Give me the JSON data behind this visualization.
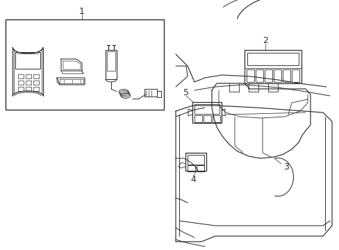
{
  "bg_color": "#ffffff",
  "line_color": "#2a2a2a",
  "lw": 0.8,
  "tlw": 0.5,
  "label_fontsize": 8.5,
  "figsize": [
    4.89,
    3.6
  ],
  "dpi": 100
}
